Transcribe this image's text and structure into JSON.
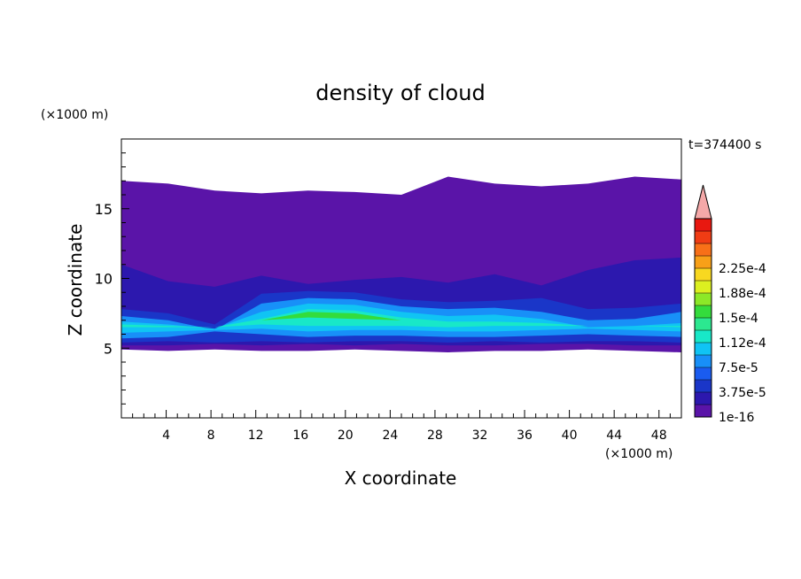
{
  "chart_data": {
    "type": "heatmap",
    "title": "density of cloud",
    "xlabel": "X coordinate",
    "ylabel": "Z coordinate",
    "x_unit": "(×1000 m)",
    "z_unit": "(×1000 m)",
    "time_label": "t=374400 s",
    "xlim": [
      0,
      50
    ],
    "ylim": [
      0,
      20
    ],
    "x_ticks": [
      "4",
      "8",
      "12",
      "16",
      "20",
      "24",
      "28",
      "32",
      "36",
      "40",
      "44",
      "48"
    ],
    "y_ticks": [
      "5",
      "10",
      "15"
    ],
    "colorbar": {
      "labels": [
        "1e-16",
        "3.75e-5",
        "7.5e-5",
        "1.12e-4",
        "1.5e-4",
        "1.88e-4",
        "2.25e-4"
      ],
      "colors": [
        "#5a14a8",
        "#2c18ae",
        "#1a36c8",
        "#1a5cf0",
        "#1890f8",
        "#10c4f4",
        "#18e8c8",
        "#2ce890",
        "#34dc3c",
        "#8ce828",
        "#dcf020",
        "#f8d820",
        "#f8a018",
        "#f87018",
        "#f03c14",
        "#e81810"
      ],
      "over_color": "#f4a8a8"
    },
    "layers": [
      {
        "name": "cloud-envelope",
        "color": "#5a14a8",
        "bottom": [
          4.9,
          4.8,
          4.9,
          4.8,
          4.8,
          4.9,
          4.8,
          4.7,
          4.8,
          4.8,
          4.9,
          4.8,
          4.7
        ],
        "top": [
          17.0,
          16.8,
          16.3,
          16.1,
          16.3,
          16.2,
          16.0,
          17.3,
          16.8,
          16.6,
          16.8,
          17.3,
          17.1
        ]
      },
      {
        "name": "dark-blue-layer",
        "color": "#2c18ae",
        "bottom": [
          5.2,
          5.2,
          5.3,
          5.2,
          5.3,
          5.2,
          5.3,
          5.2,
          5.2,
          5.3,
          5.3,
          5.2,
          5.2
        ],
        "top": [
          11.0,
          9.8,
          9.4,
          10.2,
          9.6,
          9.9,
          10.1,
          9.7,
          10.3,
          9.5,
          10.6,
          11.3,
          11.5
        ]
      },
      {
        "name": "blue-layer",
        "color": "#1a36c8",
        "bottom": [
          5.4,
          5.5,
          5.4,
          5.5,
          5.4,
          5.5,
          5.5,
          5.4,
          5.5,
          5.4,
          5.5,
          5.5,
          5.4
        ],
        "top": [
          7.8,
          7.5,
          6.7,
          8.9,
          9.1,
          9.0,
          8.5,
          8.3,
          8.4,
          8.6,
          7.8,
          7.9,
          8.2
        ]
      },
      {
        "name": "light-blue-layer",
        "color": "#1890f8",
        "bottom": [
          5.7,
          5.8,
          6.2,
          6.0,
          5.8,
          5.9,
          5.9,
          5.8,
          5.8,
          5.9,
          6.0,
          5.9,
          5.8
        ],
        "top": [
          7.3,
          7.0,
          6.3,
          8.2,
          8.6,
          8.5,
          8.0,
          7.8,
          7.9,
          7.6,
          7.0,
          7.1,
          7.6
        ]
      },
      {
        "name": "cyan-layer",
        "color": "#10c4f4",
        "bottom": [
          6.1,
          6.2,
          6.3,
          6.4,
          6.2,
          6.3,
          6.3,
          6.2,
          6.2,
          6.3,
          6.4,
          6.3,
          6.2
        ],
        "top": [
          6.9,
          6.7,
          6.4,
          7.6,
          8.2,
          8.1,
          7.6,
          7.3,
          7.4,
          7.1,
          6.5,
          6.6,
          6.8
        ]
      },
      {
        "name": "aqua-layer",
        "color": "#18e8c8",
        "bottom": [
          6.5,
          6.5,
          6.5,
          6.7,
          6.6,
          6.6,
          6.6,
          6.5,
          6.6,
          6.6,
          6.6,
          6.6,
          6.5
        ],
        "top": [
          6.7,
          6.6,
          6.5,
          7.1,
          7.8,
          7.7,
          7.2,
          6.9,
          6.9,
          6.8,
          6.6,
          6.6,
          6.6
        ]
      },
      {
        "name": "green-layer",
        "color": "#34dc3c",
        "bottom": [
          7.0,
          7.0,
          7.0,
          7.0,
          7.2,
          7.1,
          7.0,
          7.0,
          7.0,
          7.0,
          7.0,
          7.0,
          7.0
        ],
        "top": [
          7.0,
          7.0,
          7.0,
          7.0,
          7.6,
          7.5,
          7.0,
          7.0,
          7.0,
          7.0,
          7.0,
          7.0,
          7.0
        ]
      }
    ]
  }
}
